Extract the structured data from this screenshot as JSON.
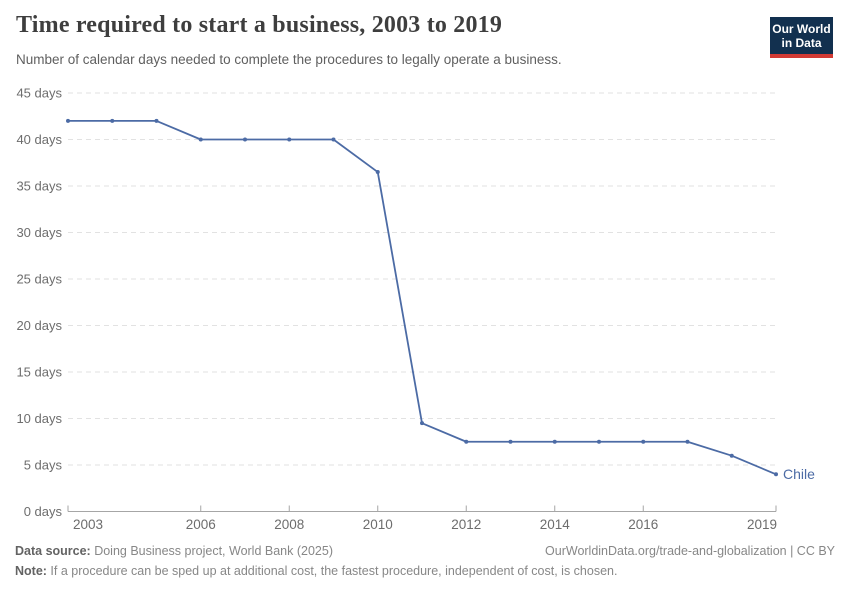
{
  "header": {
    "title": "Time required to start a business, 2003 to 2019",
    "subtitle": "Number of calendar days needed to complete the procedures to legally operate a business.",
    "logo": {
      "line1": "Our World",
      "line2": "in Data"
    }
  },
  "chart_data": {
    "type": "line",
    "title": "Time required to start a business, 2003 to 2019",
    "xlabel": "",
    "ylabel": "",
    "xlim": [
      2003,
      2019
    ],
    "ylim": [
      0,
      45
    ],
    "grid": "horizontal-dashed",
    "legend_position": "end-of-line-label",
    "xticks": [
      {
        "value": 2003,
        "label": "2003"
      },
      {
        "value": 2006,
        "label": "2006"
      },
      {
        "value": 2008,
        "label": "2008"
      },
      {
        "value": 2010,
        "label": "2010"
      },
      {
        "value": 2012,
        "label": "2012"
      },
      {
        "value": 2014,
        "label": "2014"
      },
      {
        "value": 2016,
        "label": "2016"
      },
      {
        "value": 2019,
        "label": "2019"
      }
    ],
    "yticks": [
      {
        "value": 0,
        "label": "0 days"
      },
      {
        "value": 5,
        "label": "5 days"
      },
      {
        "value": 10,
        "label": "10 days"
      },
      {
        "value": 15,
        "label": "15 days"
      },
      {
        "value": 20,
        "label": "20 days"
      },
      {
        "value": 25,
        "label": "25 days"
      },
      {
        "value": 30,
        "label": "30 days"
      },
      {
        "value": 35,
        "label": "35 days"
      },
      {
        "value": 40,
        "label": "40 days"
      },
      {
        "value": 45,
        "label": "45 days"
      }
    ],
    "series": [
      {
        "name": "Chile",
        "color": "#4c6ba5",
        "points": [
          [
            2003,
            42
          ],
          [
            2004,
            42
          ],
          [
            2005,
            42
          ],
          [
            2006,
            40
          ],
          [
            2007,
            40
          ],
          [
            2008,
            40
          ],
          [
            2009,
            40
          ],
          [
            2010,
            36.5
          ],
          [
            2011,
            9.5
          ],
          [
            2012,
            7.5
          ],
          [
            2013,
            7.5
          ],
          [
            2014,
            7.5
          ],
          [
            2015,
            7.5
          ],
          [
            2016,
            7.5
          ],
          [
            2017,
            7.5
          ],
          [
            2018,
            6
          ],
          [
            2019,
            4
          ]
        ]
      }
    ]
  },
  "footer": {
    "source_label": "Data source:",
    "source_text": " Doing Business project, World Bank (2025)",
    "attribution": "OurWorldinData.org/trade-and-globalization | CC BY",
    "note_label": "Note:",
    "note_text": " If a procedure can be sped up at additional cost, the fastest procedure, independent of cost, is chosen."
  },
  "colors": {
    "line": "#4c6ba5",
    "logo_bg": "#12304f",
    "logo_red": "#d23a34",
    "title_text": "#3e3e3e",
    "grid": "#e2e2e2",
    "axis": "#a6a6a6"
  }
}
